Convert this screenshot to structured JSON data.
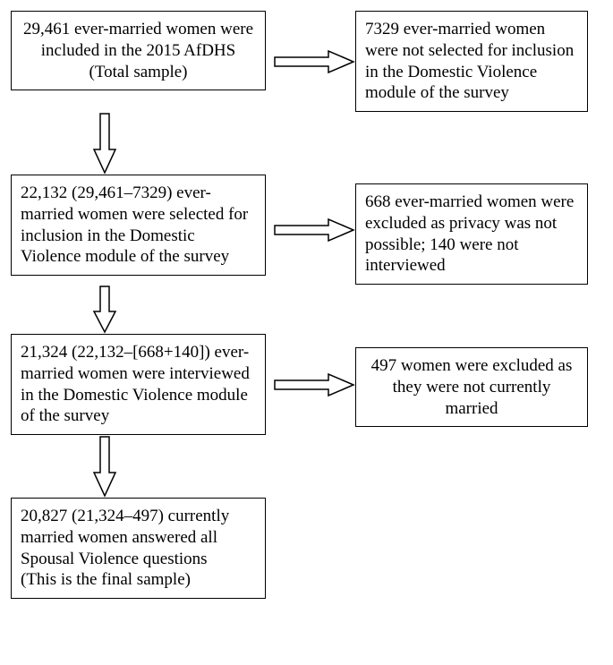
{
  "type": "flowchart",
  "background_color": "#ffffff",
  "border_color": "#000000",
  "font_family": "Times New Roman",
  "font_size_pt": 14,
  "boxes": {
    "b1": "29,461 ever-married women were included in the 2015 AfDHS\n(Total sample)",
    "e1": "7329 ever-married women were not selected for inclusion in the Domestic Violence module of the survey",
    "b2": "22,132 (29,461–7329) ever-married women were selected for inclusion in the Domestic Violence module of the survey",
    "e2": "668 ever-married women were excluded as privacy was not possible; 140 were not interviewed",
    "b3": "21,324 (22,132–[668+140]) ever-married women were interviewed in the Domestic Violence module of the survey",
    "e3": "497 women were excluded as they were not currently married",
    "b4": "20,827 (21,324–497) currently married women answered all Spousal Violence questions\n(This is the final sample)"
  },
  "arrow_style": {
    "type": "open-block-arrow",
    "stroke": "#000000",
    "stroke_width": 1.5,
    "fill": "#ffffff"
  }
}
